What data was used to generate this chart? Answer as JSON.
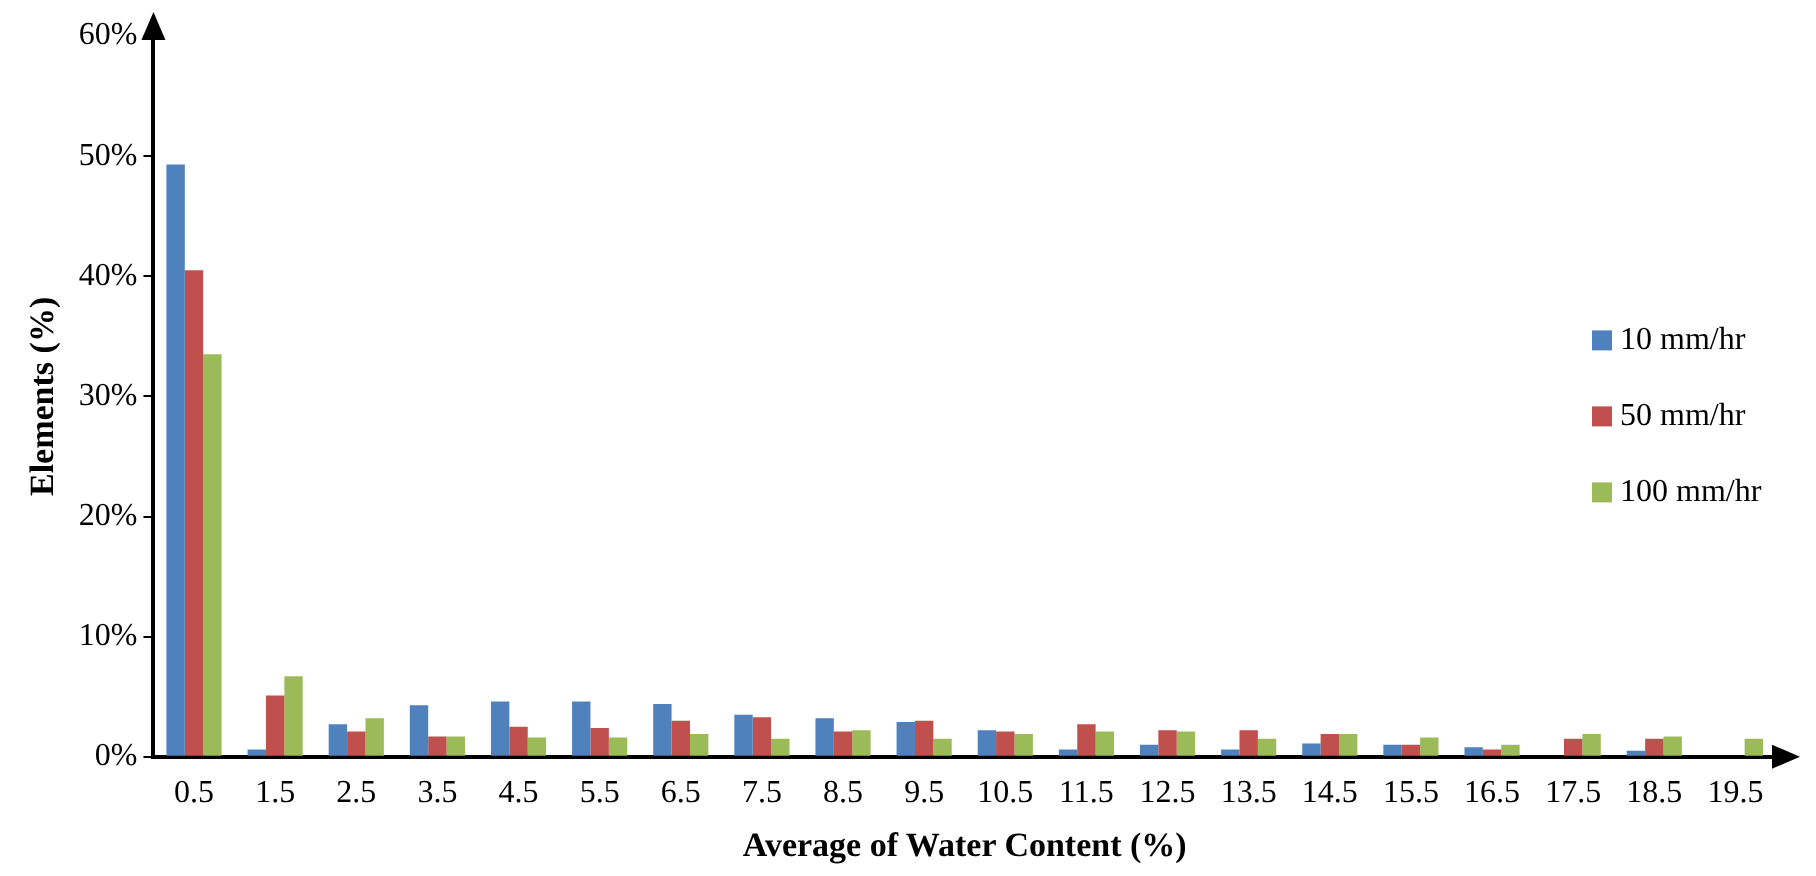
{
  "chart_data": {
    "type": "bar",
    "xlabel": "Average of Water Content (%)",
    "ylabel": "Elements (%)",
    "categories": [
      "0.5",
      "1.5",
      "2.5",
      "3.5",
      "4.5",
      "5.5",
      "6.5",
      "7.5",
      "8.5",
      "9.5",
      "10.5",
      "11.5",
      "12.5",
      "13.5",
      "14.5",
      "15.5",
      "16.5",
      "17.5",
      "18.5",
      "19.5"
    ],
    "series": [
      {
        "name": "10 mm/hr",
        "color": "#4f81bd",
        "values": [
          49.3,
          0.6,
          2.7,
          4.3,
          4.6,
          4.6,
          4.4,
          3.5,
          3.2,
          2.9,
          2.2,
          0.6,
          1.0,
          0.6,
          1.1,
          1.0,
          0.8,
          0,
          0.5,
          0
        ]
      },
      {
        "name": "50 mm/hr",
        "color": "#c0504d",
        "values": [
          40.5,
          5.1,
          2.1,
          1.7,
          2.5,
          2.4,
          3.0,
          3.3,
          2.1,
          3.0,
          2.1,
          2.7,
          2.2,
          2.2,
          1.9,
          1.0,
          0.6,
          1.5,
          1.5,
          0
        ]
      },
      {
        "name": "100 mm/hr",
        "color": "#9bbb59",
        "values": [
          33.5,
          6.7,
          3.2,
          1.7,
          1.6,
          1.6,
          1.9,
          1.5,
          2.2,
          1.5,
          1.9,
          2.1,
          2.1,
          1.5,
          1.9,
          1.6,
          1.0,
          1.9,
          1.7,
          1.5
        ]
      }
    ],
    "ylim": [
      0,
      60
    ],
    "yticks": [
      {
        "value": 0,
        "label": "0%"
      },
      {
        "value": 10,
        "label": "10%"
      },
      {
        "value": 20,
        "label": "20%"
      },
      {
        "value": 30,
        "label": "30%"
      },
      {
        "value": 40,
        "label": "40%"
      },
      {
        "value": 50,
        "label": "50%"
      },
      {
        "value": 60,
        "label": "60%"
      }
    ],
    "grid": false,
    "legend": "right"
  }
}
